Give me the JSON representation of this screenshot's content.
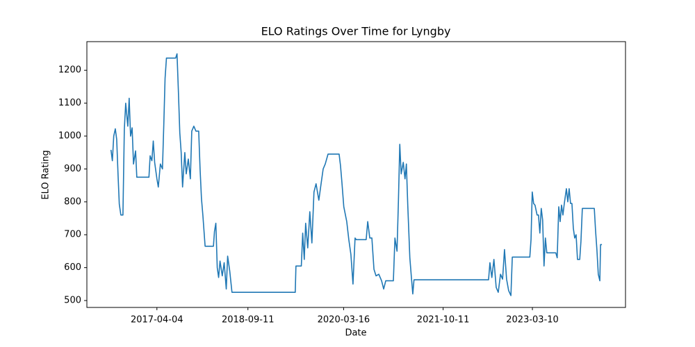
{
  "chart_data": {
    "type": "line",
    "title": "ELO Ratings Over Time for Lyngby",
    "x_label": "Date",
    "y_label": "ELO Rating",
    "color": "#1f77b4",
    "x": [
      "2016-07-13",
      "2016-07-21",
      "2016-07-29",
      "2016-08-07",
      "2016-08-15",
      "2016-08-23",
      "2016-08-30",
      "2016-09-08",
      "2016-09-20",
      "2016-09-28",
      "2016-10-06",
      "2016-10-18",
      "2016-10-26",
      "2016-11-03",
      "2016-11-12",
      "2016-11-20",
      "2016-12-02",
      "2016-12-09",
      "2017-02-17",
      "2017-02-24",
      "2017-03-06",
      "2017-03-14",
      "2017-03-22",
      "2017-04-04",
      "2017-04-12",
      "2017-04-24",
      "2017-05-06",
      "2017-05-14",
      "2017-05-21",
      "2017-05-29",
      "2017-07-21",
      "2017-07-29",
      "2017-08-06",
      "2017-08-14",
      "2017-08-22",
      "2017-08-30",
      "2017-09-12",
      "2017-09-20",
      "2017-10-02",
      "2017-10-14",
      "2017-10-22",
      "2017-11-03",
      "2017-11-15",
      "2017-12-01",
      "2017-12-09",
      "2017-12-17",
      "2017-12-25",
      "2018-01-07",
      "2018-02-24",
      "2018-03-02",
      "2018-03-10",
      "2018-03-18",
      "2018-03-26",
      "2018-04-03",
      "2018-04-16",
      "2018-04-27",
      "2018-05-09",
      "2018-05-17",
      "2018-05-29",
      "2018-06-11",
      "2019-06-11",
      "2019-06-15",
      "2019-07-16",
      "2019-07-24",
      "2019-08-02",
      "2019-08-10",
      "2019-08-22",
      "2019-09-03",
      "2019-09-15",
      "2019-09-27",
      "2019-10-09",
      "2019-10-25",
      "2019-11-07",
      "2019-11-19",
      "2019-12-01",
      "2019-12-17",
      "2020-02-19",
      "2020-02-27",
      "2020-03-06",
      "2020-03-17",
      "2020-04-03",
      "2020-04-15",
      "2020-04-27",
      "2020-05-09",
      "2020-05-21",
      "2020-05-28",
      "2020-07-24",
      "2020-08-02",
      "2020-08-14",
      "2020-08-26",
      "2020-09-07",
      "2020-09-19",
      "2020-10-05",
      "2020-10-21",
      "2020-11-02",
      "2020-11-14",
      "2020-12-28",
      "2021-01-06",
      "2021-01-18",
      "2021-01-26",
      "2021-02-03",
      "2021-02-11",
      "2021-02-23",
      "2021-03-05",
      "2021-03-13",
      "2021-03-21",
      "2021-04-02",
      "2021-04-11",
      "2021-04-19",
      "2021-04-26",
      "2022-06-30",
      "2022-07-08",
      "2022-07-19",
      "2022-07-31",
      "2022-08-13",
      "2022-08-25",
      "2022-09-07",
      "2022-09-19",
      "2022-09-30",
      "2022-10-12",
      "2022-10-24",
      "2022-11-06",
      "2022-11-14",
      "2023-02-23",
      "2023-03-02",
      "2023-03-09",
      "2023-03-17",
      "2023-03-25",
      "2023-04-06",
      "2023-04-14",
      "2023-04-22",
      "2023-04-30",
      "2023-05-08",
      "2023-05-16",
      "2023-05-24",
      "2023-06-01",
      "2023-07-23",
      "2023-07-31",
      "2023-08-09",
      "2023-08-17",
      "2023-08-25",
      "2023-09-02",
      "2023-09-10",
      "2023-09-22",
      "2023-09-30",
      "2023-10-08",
      "2023-10-16",
      "2023-10-24",
      "2023-11-01",
      "2023-11-09",
      "2023-11-17",
      "2023-11-25",
      "2023-12-08",
      "2023-12-15",
      "2023-12-23",
      "2024-03-01",
      "2024-03-08",
      "2024-03-16",
      "2024-03-24",
      "2024-04-02",
      "2024-04-06",
      "2024-04-14"
    ],
    "values": [
      958,
      925,
      1000,
      1022,
      990,
      880,
      793,
      760,
      760,
      1020,
      1100,
      1030,
      1115,
      1000,
      1025,
      915,
      955,
      875,
      875,
      940,
      925,
      985,
      920,
      870,
      845,
      915,
      900,
      1040,
      1175,
      1237,
      1237,
      1250,
      1135,
      1010,
      950,
      845,
      950,
      885,
      930,
      870,
      1015,
      1030,
      1015,
      1015,
      900,
      810,
      760,
      665,
      665,
      710,
      735,
      600,
      570,
      620,
      575,
      615,
      535,
      635,
      590,
      525,
      525,
      605,
      605,
      705,
      625,
      735,
      660,
      770,
      675,
      830,
      855,
      805,
      855,
      900,
      915,
      945,
      945,
      910,
      860,
      785,
      740,
      685,
      640,
      550,
      690,
      685,
      685,
      740,
      690,
      690,
      595,
      575,
      580,
      560,
      535,
      560,
      560,
      690,
      650,
      800,
      975,
      885,
      920,
      870,
      915,
      790,
      630,
      570,
      520,
      563,
      563,
      615,
      570,
      625,
      540,
      525,
      580,
      565,
      655,
      565,
      530,
      515,
      632,
      632,
      685,
      830,
      795,
      790,
      760,
      760,
      705,
      780,
      745,
      605,
      690,
      645,
      645,
      630,
      785,
      740,
      790,
      760,
      795,
      840,
      800,
      840,
      795,
      795,
      720,
      690,
      700,
      625,
      625,
      680,
      780,
      780,
      715,
      655,
      580,
      560,
      670,
      670
    ],
    "xlim": [
      "2016-02-25",
      "2024-08-28"
    ],
    "xticks": [
      "2017-04-04",
      "2018-09-11",
      "2020-03-16",
      "2021-10-11",
      "2023-03-10"
    ],
    "ylim": [
      479,
      1287
    ],
    "yticks": [
      500,
      600,
      700,
      800,
      900,
      1000,
      1100,
      1200
    ]
  }
}
